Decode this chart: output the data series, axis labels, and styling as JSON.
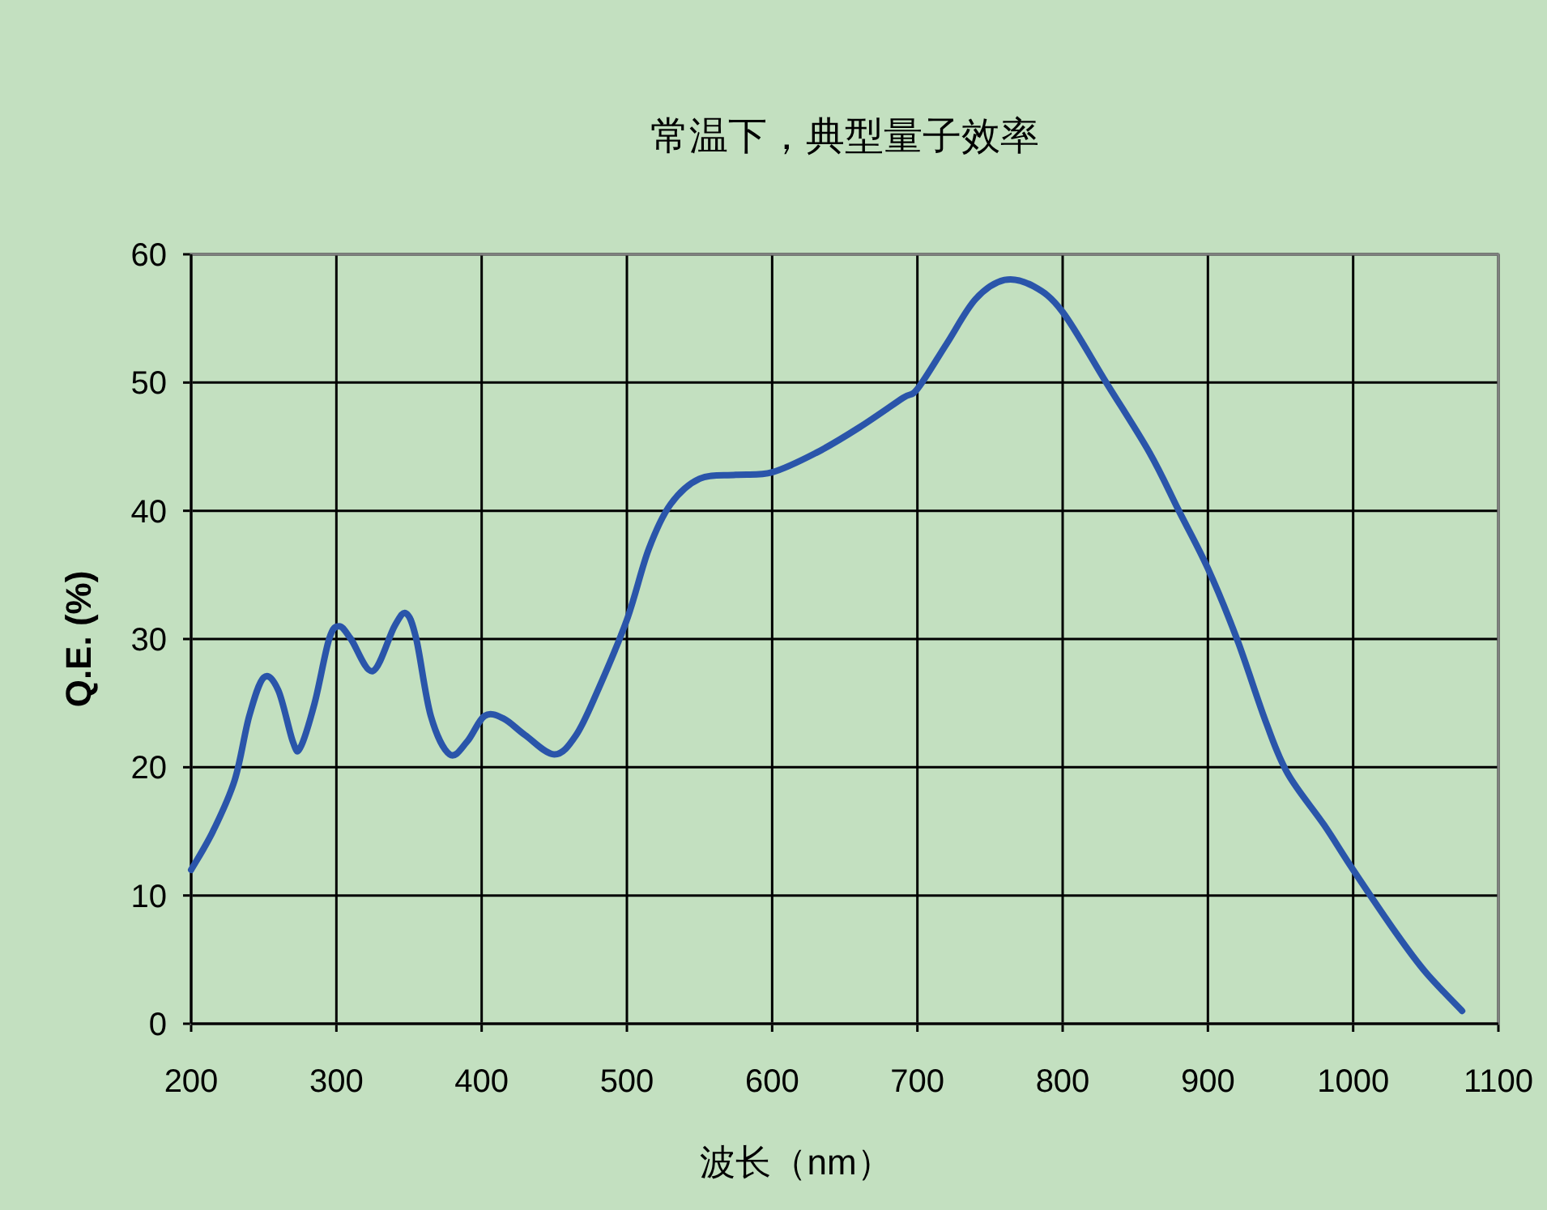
{
  "chart_data": {
    "type": "line",
    "title": "常温下，典型量子效率",
    "xlabel": "波长（nm）",
    "ylabel": "Q.E. (%)",
    "xlim": [
      200,
      1100
    ],
    "xticks": [
      200,
      300,
      400,
      500,
      600,
      700,
      800,
      900,
      1000,
      1100
    ],
    "ylim": [
      0,
      60
    ],
    "yticks": [
      0,
      10,
      20,
      30,
      40,
      50,
      60
    ],
    "grid": true,
    "marker": "none",
    "line_style": "solid",
    "series": [
      {
        "color": "#2a55aa",
        "x": [
          200,
          215,
          230,
          240,
          250,
          260,
          270,
          275,
          285,
          295,
          302,
          310,
          325,
          340,
          348,
          355,
          365,
          378,
          390,
          402,
          415,
          430,
          450,
          465,
          480,
          500,
          515,
          530,
          550,
          575,
          600,
          630,
          660,
          690,
          700,
          720,
          740,
          760,
          780,
          800,
          830,
          860,
          880,
          900,
          920,
          940,
          955,
          980,
          1000,
          1030,
          1050,
          1075
        ],
        "values": [
          12,
          15,
          19,
          24,
          27,
          26,
          22,
          21.5,
          25,
          30,
          31,
          30,
          27.5,
          31,
          32,
          30,
          24,
          21,
          22,
          24,
          23.8,
          22.5,
          21,
          22.5,
          26,
          31.5,
          37,
          40.5,
          42.5,
          42.8,
          43,
          44.5,
          46.5,
          48.8,
          49.5,
          53,
          56.5,
          58,
          57.5,
          55.5,
          50,
          44.5,
          40,
          35.5,
          30,
          23.5,
          19.5,
          15.5,
          12,
          7,
          4,
          1
        ]
      }
    ]
  }
}
